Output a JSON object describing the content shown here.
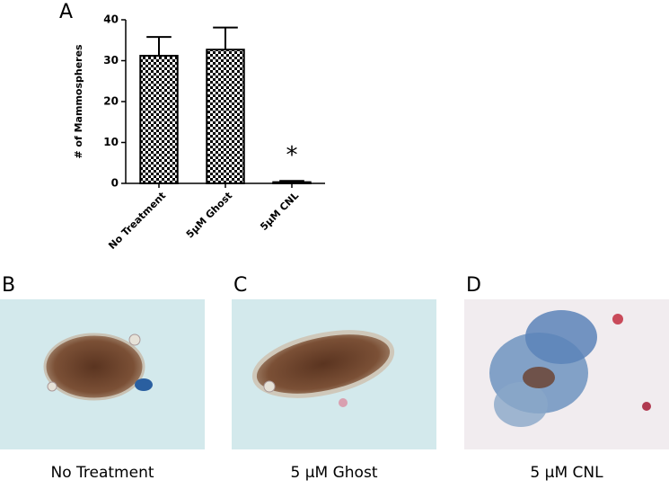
{
  "chart_data": {
    "type": "bar",
    "panel": "A",
    "ylabel": "# of Mammospheres",
    "categories": [
      "No Treatment",
      "5μM Ghost",
      "5μM CNL"
    ],
    "values": [
      31.2,
      32.7,
      0.3
    ],
    "errors": [
      4.6,
      5.4,
      0.3
    ],
    "annotation": "*",
    "color": "#000000",
    "ylim": [
      0,
      40
    ],
    "yticks": [
      0,
      10,
      20,
      30,
      40
    ]
  },
  "panels": [
    {
      "label": "B",
      "caption": "No Treatment"
    },
    {
      "label": "C",
      "caption": "5 μM Ghost"
    },
    {
      "label": "D",
      "caption": "5 μM CNL"
    }
  ]
}
